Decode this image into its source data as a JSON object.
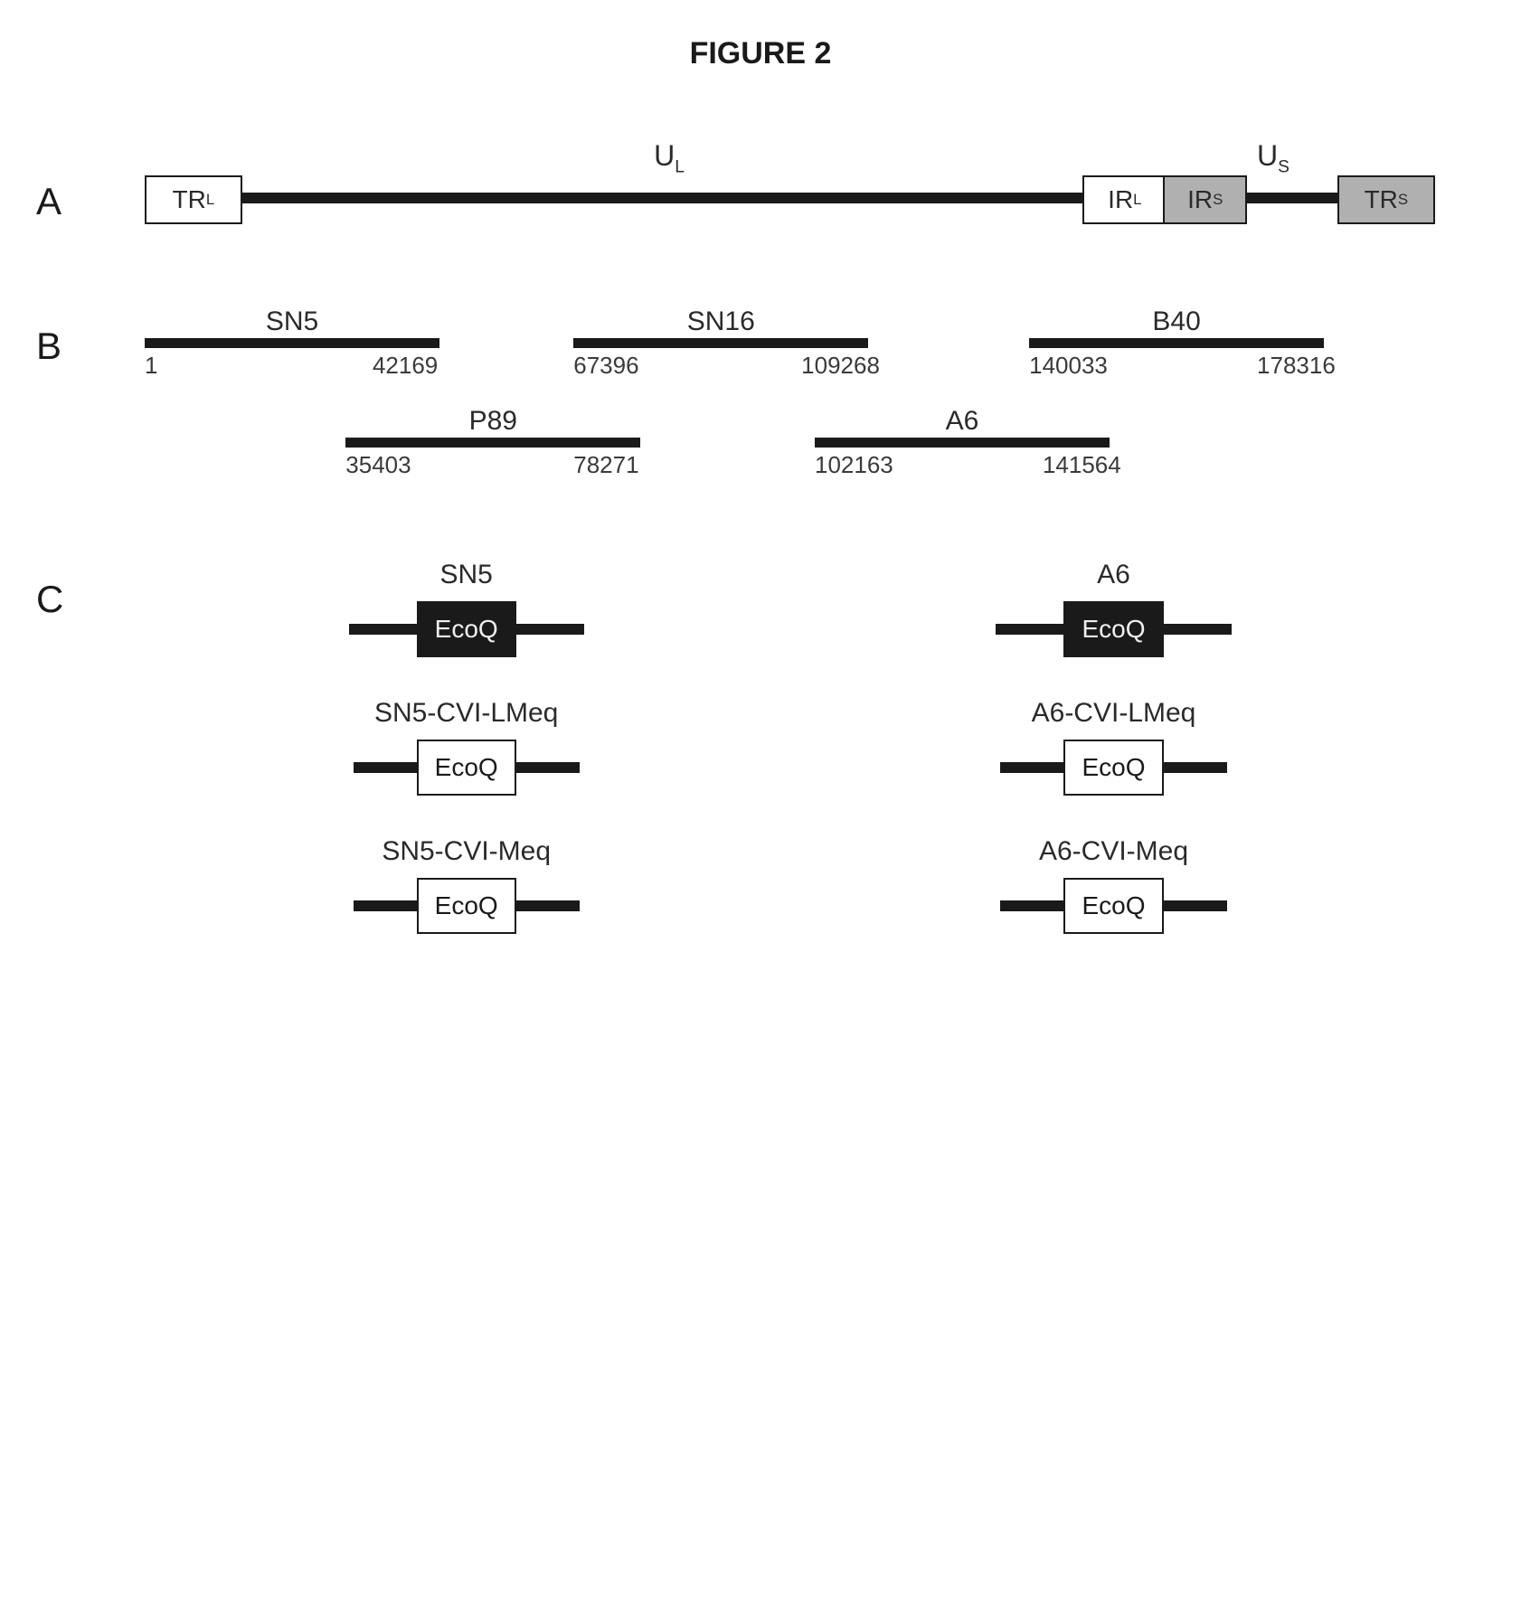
{
  "title": "FIGURE 2",
  "colors": {
    "black": "#1a1a1a",
    "grey": "#b0b0b0",
    "white": "#ffffff",
    "text_dark": "#2a2a2a"
  },
  "typography": {
    "title_fontsize": 34,
    "panel_label_fontsize": 42,
    "region_label_fontsize": 32,
    "cosmid_label_fontsize": 30,
    "coord_fontsize": 26,
    "construct_title_fontsize": 30,
    "ecoq_fontsize": 28
  },
  "panelA": {
    "label": "A",
    "genome_total_width_pct": 100,
    "line_segments": [
      {
        "left_pct": 7,
        "width_pct": 63
      },
      {
        "left_pct": 82,
        "width_pct": 7
      }
    ],
    "boxes": [
      {
        "label_html": "TR<span class=\"sub\">L</span>",
        "left_pct": 0,
        "width_pct": 7,
        "fill": "white"
      },
      {
        "label_html": "IR<span class=\"sub\">L</span>",
        "left_pct": 70,
        "width_pct": 6,
        "fill": "white"
      },
      {
        "label_html": "IR<span class=\"sub\">S</span>",
        "left_pct": 76,
        "width_pct": 6,
        "fill": "grey"
      },
      {
        "label_html": "TR<span class=\"sub\">S</span>",
        "left_pct": 89,
        "width_pct": 7,
        "fill": "grey"
      }
    ],
    "region_labels": [
      {
        "html": "U<span class=\"sub\">L</span>",
        "left_pct": 38
      },
      {
        "html": "U<span class=\"sub\">S</span>",
        "left_pct": 83
      }
    ]
  },
  "panelB": {
    "label": "B",
    "cosmids_top_row": [
      {
        "name": "SN5",
        "start": "1",
        "end": "42169",
        "left_pct": 0,
        "width_pct": 22
      },
      {
        "name": "SN16",
        "start": "67396",
        "end": "109268",
        "left_pct": 32,
        "width_pct": 22
      },
      {
        "name": "B40",
        "start": "140033",
        "end": "178316",
        "left_pct": 66,
        "width_pct": 22
      }
    ],
    "cosmids_bottom_row": [
      {
        "name": "P89",
        "start": "35403",
        "end": "78271",
        "left_pct": 15,
        "width_pct": 22
      },
      {
        "name": "A6",
        "start": "102163",
        "end": "141564",
        "left_pct": 50,
        "width_pct": 22
      }
    ]
  },
  "panelC": {
    "label": "C",
    "left_column": [
      {
        "title": "SN5",
        "box_fill": "black",
        "box_label": "EcoQ",
        "arm_width": 75
      },
      {
        "title": "SN5-CVI-LMeq",
        "box_fill": "white",
        "box_label": "EcoQ",
        "arm_width": 70
      },
      {
        "title": "SN5-CVI-Meq",
        "box_fill": "white",
        "box_label": "EcoQ",
        "arm_width": 70
      }
    ],
    "right_column": [
      {
        "title": "A6",
        "box_fill": "black",
        "box_label": "EcoQ",
        "arm_width": 75
      },
      {
        "title": "A6-CVI-LMeq",
        "box_fill": "white",
        "box_label": "EcoQ",
        "arm_width": 70
      },
      {
        "title": "A6-CVI-Meq",
        "box_fill": "white",
        "box_label": "EcoQ",
        "arm_width": 70
      }
    ]
  }
}
